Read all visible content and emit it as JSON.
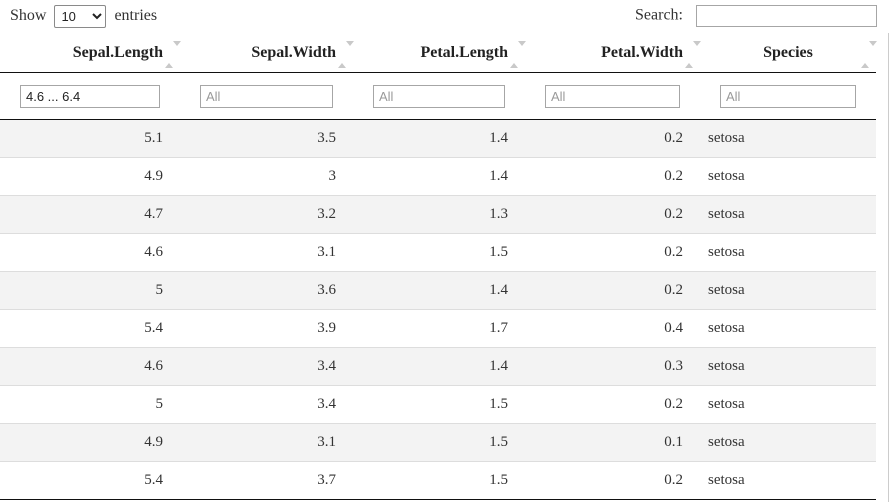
{
  "controls": {
    "show_label": "Show",
    "entries_label": "entries",
    "page_length_selected": "10",
    "search_label": "Search:",
    "search_value": ""
  },
  "table": {
    "columns": [
      {
        "label": "Sepal.Length",
        "filter_value": "4.6 ... 6.4",
        "filter_placeholder": "All"
      },
      {
        "label": "Sepal.Width",
        "filter_value": "",
        "filter_placeholder": "All"
      },
      {
        "label": "Petal.Length",
        "filter_value": "",
        "filter_placeholder": "All"
      },
      {
        "label": "Petal.Width",
        "filter_value": "",
        "filter_placeholder": "All"
      },
      {
        "label": "Species",
        "filter_value": "",
        "filter_placeholder": "All"
      }
    ],
    "sort_state": "unsorted",
    "rows": [
      [
        "5.1",
        "3.5",
        "1.4",
        "0.2",
        "setosa"
      ],
      [
        "4.9",
        "3",
        "1.4",
        "0.2",
        "setosa"
      ],
      [
        "4.7",
        "3.2",
        "1.3",
        "0.2",
        "setosa"
      ],
      [
        "4.6",
        "3.1",
        "1.5",
        "0.2",
        "setosa"
      ],
      [
        "5",
        "3.6",
        "1.4",
        "0.2",
        "setosa"
      ],
      [
        "5.4",
        "3.9",
        "1.7",
        "0.4",
        "setosa"
      ],
      [
        "4.6",
        "3.4",
        "1.4",
        "0.3",
        "setosa"
      ],
      [
        "5",
        "3.4",
        "1.5",
        "0.2",
        "setosa"
      ],
      [
        "4.9",
        "3.1",
        "1.5",
        "0.1",
        "setosa"
      ],
      [
        "5.4",
        "3.7",
        "1.5",
        "0.2",
        "setosa"
      ]
    ]
  },
  "colors": {
    "header_border": "#111111",
    "row_border": "#dddddd",
    "stripe": "#f3f3f3",
    "sort_arrow": "#c9c9c9",
    "input_border": "#a6a6a6",
    "text": "#333333",
    "placeholder": "#9a9a9a"
  }
}
